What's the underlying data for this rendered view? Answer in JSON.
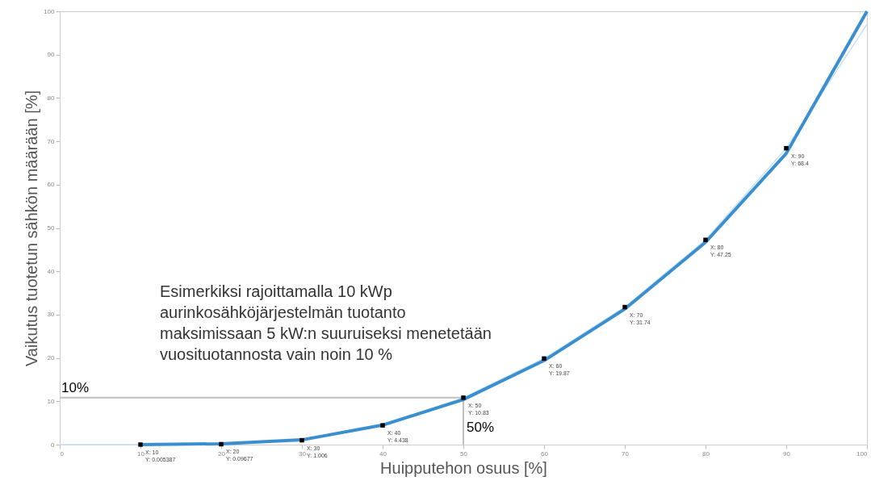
{
  "chart_data": {
    "type": "line",
    "xlabel": "Huipputehon osuus [%]",
    "ylabel": "Vaikutus tuotetun sähkön määrään [%]",
    "xlim": [
      0,
      100
    ],
    "ylim": [
      0,
      100
    ],
    "xticks": [
      0,
      10,
      20,
      30,
      40,
      50,
      60,
      70,
      80,
      90,
      100
    ],
    "yticks": [
      0,
      10,
      20,
      30,
      40,
      50,
      60,
      70,
      80,
      90,
      100
    ],
    "grid": false,
    "series": [
      {
        "color": "#c6e0f5",
        "x": [
          0,
          10,
          20,
          30,
          40,
          50,
          60,
          70,
          80,
          90,
          100
        ],
        "values": [
          0,
          0.005387,
          0.09677,
          1.006,
          4.438,
          10.83,
          19.87,
          31.74,
          47.25,
          68.4,
          97
        ]
      },
      {
        "color": "#bfbfbf",
        "x": [
          0,
          50,
          50
        ],
        "values": [
          10.83,
          10.83,
          0
        ]
      },
      {
        "color": "#3a8fd0",
        "x": [
          10,
          20,
          30,
          40,
          50,
          60,
          70,
          80,
          90,
          100
        ],
        "values": [
          0,
          0.2,
          1.1,
          4.5,
          10.4,
          19.4,
          31.3,
          46.7,
          67.2,
          100
        ]
      },
      {
        "type": "scatter",
        "color": "#000000",
        "marker": "square",
        "x": [
          10,
          20,
          30,
          40,
          50,
          60,
          70,
          80,
          90
        ],
        "values": [
          0.005387,
          0.09677,
          1.006,
          4.438,
          10.83,
          19.87,
          31.74,
          47.25,
          68.4
        ]
      }
    ],
    "annotations": [
      "Esimerkiksi rajoittamalla 10 kWp\naurinkosähköjärjestelmän tuotanto\nmaksimissaan 5 kW:n suuruiseksi menetetään\nvuosituotannosta vain noin 10 %",
      {
        "text": "10%",
        "x": 0,
        "y": 10.83
      },
      {
        "text": "50%",
        "x": 50,
        "y": 0
      },
      {
        "text": "X: 10\nY: 0.005387",
        "x": 10,
        "y": 0.005387
      },
      {
        "text": "X: 20\nY: 0.09677",
        "x": 20,
        "y": 0.09677
      },
      {
        "text": "X: 30\nY: 1.006",
        "x": 30,
        "y": 1.006
      },
      {
        "text": "X: 40\nY: 4.438",
        "x": 40,
        "y": 4.438
      },
      {
        "text": "X: 50\nY: 10.83",
        "x": 50,
        "y": 10.83
      },
      {
        "text": "X: 60\nY: 19.87",
        "x": 60,
        "y": 19.87
      },
      {
        "text": "X: 70\nY: 31.74",
        "x": 70,
        "y": 31.74
      },
      {
        "text": "X: 80\nY: 47.25",
        "x": 80,
        "y": 47.25
      },
      {
        "text": "X: 90\nY: 68.4",
        "x": 90,
        "y": 68.4
      }
    ]
  }
}
